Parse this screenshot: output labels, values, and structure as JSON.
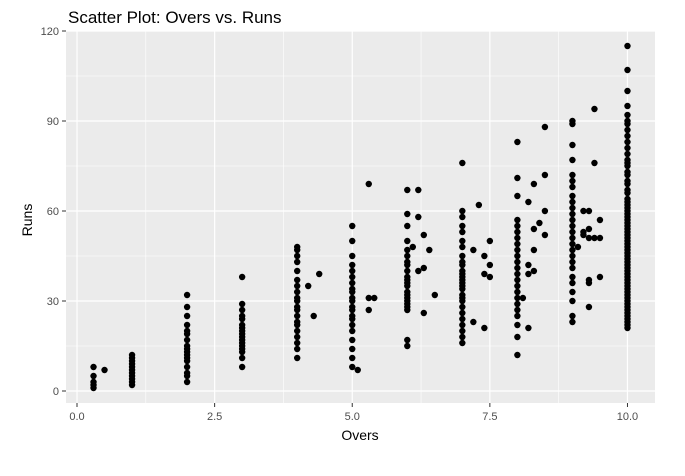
{
  "chart_data": {
    "type": "scatter",
    "title": "Scatter Plot: Overs vs. Runs",
    "xlabel": "Overs",
    "ylabel": "Runs",
    "xlim": [
      -0.2,
      10.5
    ],
    "ylim": [
      -4,
      120
    ],
    "x_ticks": [
      {
        "value": 0,
        "label": "0.0"
      },
      {
        "value": 2.5,
        "label": "2.5"
      },
      {
        "value": 5,
        "label": "5.0"
      },
      {
        "value": 7.5,
        "label": "7.5"
      },
      {
        "value": 10,
        "label": "10.0"
      }
    ],
    "y_ticks": [
      {
        "value": 0,
        "label": "0"
      },
      {
        "value": 30,
        "label": "30"
      },
      {
        "value": 60,
        "label": "60"
      },
      {
        "value": 90,
        "label": "90"
      },
      {
        "value": 120,
        "label": "120"
      }
    ],
    "grid": true,
    "panel_background": "#EBEBEB",
    "grid_color": "#FFFFFF",
    "point_color": "#000000",
    "points": [
      [
        0.3,
        8
      ],
      [
        0.3,
        5
      ],
      [
        0.3,
        3
      ],
      [
        0.3,
        2
      ],
      [
        0.3,
        1
      ],
      [
        0.5,
        7
      ],
      [
        1,
        12
      ],
      [
        1,
        11
      ],
      [
        1,
        10
      ],
      [
        1,
        9
      ],
      [
        1,
        8
      ],
      [
        1,
        7
      ],
      [
        1,
        6
      ],
      [
        1,
        5
      ],
      [
        1,
        4
      ],
      [
        1,
        3
      ],
      [
        1,
        2
      ],
      [
        2,
        32
      ],
      [
        2,
        28
      ],
      [
        2,
        25
      ],
      [
        2,
        22
      ],
      [
        2,
        20
      ],
      [
        2,
        19
      ],
      [
        2,
        17
      ],
      [
        2,
        15
      ],
      [
        2,
        14
      ],
      [
        2,
        13
      ],
      [
        2,
        12
      ],
      [
        2,
        11
      ],
      [
        2,
        10
      ],
      [
        2,
        8
      ],
      [
        2,
        6
      ],
      [
        2,
        5
      ],
      [
        2,
        3
      ],
      [
        3,
        38
      ],
      [
        3,
        29
      ],
      [
        3,
        27
      ],
      [
        3,
        25
      ],
      [
        3,
        24
      ],
      [
        3,
        22
      ],
      [
        3,
        21
      ],
      [
        3,
        20
      ],
      [
        3,
        19
      ],
      [
        3,
        18
      ],
      [
        3,
        17
      ],
      [
        3,
        16
      ],
      [
        3,
        15
      ],
      [
        3,
        14
      ],
      [
        3,
        13
      ],
      [
        3,
        11
      ],
      [
        3,
        8
      ],
      [
        4,
        48
      ],
      [
        4,
        47
      ],
      [
        4,
        45
      ],
      [
        4,
        43
      ],
      [
        4,
        40
      ],
      [
        4,
        37
      ],
      [
        4,
        35
      ],
      [
        4,
        33
      ],
      [
        4,
        31
      ],
      [
        4,
        30
      ],
      [
        4,
        28
      ],
      [
        4,
        27
      ],
      [
        4,
        25
      ],
      [
        4,
        23
      ],
      [
        4,
        22
      ],
      [
        4,
        20
      ],
      [
        4,
        18
      ],
      [
        4,
        16
      ],
      [
        4,
        14
      ],
      [
        4,
        11
      ],
      [
        4.2,
        35
      ],
      [
        4.3,
        25
      ],
      [
        4.4,
        39
      ],
      [
        5,
        55
      ],
      [
        5,
        50
      ],
      [
        5,
        45
      ],
      [
        5,
        42
      ],
      [
        5,
        40
      ],
      [
        5,
        38
      ],
      [
        5,
        36
      ],
      [
        5,
        34
      ],
      [
        5,
        33
      ],
      [
        5,
        31
      ],
      [
        5,
        30
      ],
      [
        5,
        28
      ],
      [
        5,
        27
      ],
      [
        5,
        25
      ],
      [
        5,
        24
      ],
      [
        5,
        22
      ],
      [
        5,
        20
      ],
      [
        5,
        17
      ],
      [
        5,
        14
      ],
      [
        5,
        11
      ],
      [
        5,
        8
      ],
      [
        5.1,
        7
      ],
      [
        5.3,
        69
      ],
      [
        5.3,
        31
      ],
      [
        5.3,
        27
      ],
      [
        5.4,
        31
      ],
      [
        6,
        67
      ],
      [
        6,
        59
      ],
      [
        6,
        55
      ],
      [
        6,
        50
      ],
      [
        6,
        47
      ],
      [
        6,
        45
      ],
      [
        6,
        43
      ],
      [
        6,
        42
      ],
      [
        6,
        40
      ],
      [
        6,
        38
      ],
      [
        6,
        37
      ],
      [
        6,
        36
      ],
      [
        6,
        35
      ],
      [
        6,
        33
      ],
      [
        6,
        32
      ],
      [
        6,
        31
      ],
      [
        6,
        30
      ],
      [
        6,
        29
      ],
      [
        6,
        28
      ],
      [
        6,
        27
      ],
      [
        6,
        17
      ],
      [
        6,
        15
      ],
      [
        6.1,
        48
      ],
      [
        6.2,
        67
      ],
      [
        6.2,
        58
      ],
      [
        6.2,
        40
      ],
      [
        6.3,
        52
      ],
      [
        6.3,
        41
      ],
      [
        6.3,
        26
      ],
      [
        6.4,
        47
      ],
      [
        6.5,
        32
      ],
      [
        7,
        76
      ],
      [
        7,
        60
      ],
      [
        7,
        58
      ],
      [
        7,
        55
      ],
      [
        7,
        53
      ],
      [
        7,
        50
      ],
      [
        7,
        48
      ],
      [
        7,
        45
      ],
      [
        7,
        43
      ],
      [
        7,
        42
      ],
      [
        7,
        40
      ],
      [
        7,
        39
      ],
      [
        7,
        38
      ],
      [
        7,
        37
      ],
      [
        7,
        36
      ],
      [
        7,
        35
      ],
      [
        7,
        34
      ],
      [
        7,
        32
      ],
      [
        7,
        31
      ],
      [
        7,
        30
      ],
      [
        7,
        28
      ],
      [
        7,
        26
      ],
      [
        7,
        24
      ],
      [
        7,
        22
      ],
      [
        7,
        20
      ],
      [
        7,
        18
      ],
      [
        7,
        16
      ],
      [
        7.2,
        47
      ],
      [
        7.2,
        23
      ],
      [
        7.3,
        62
      ],
      [
        7.4,
        45
      ],
      [
        7.4,
        39
      ],
      [
        7.4,
        21
      ],
      [
        7.5,
        50
      ],
      [
        7.5,
        42
      ],
      [
        7.5,
        38
      ],
      [
        8,
        83
      ],
      [
        8,
        71
      ],
      [
        8,
        65
      ],
      [
        8,
        57
      ],
      [
        8,
        55
      ],
      [
        8,
        53
      ],
      [
        8,
        51
      ],
      [
        8,
        49
      ],
      [
        8,
        47
      ],
      [
        8,
        45
      ],
      [
        8,
        43
      ],
      [
        8,
        41
      ],
      [
        8,
        39
      ],
      [
        8,
        37
      ],
      [
        8,
        35
      ],
      [
        8,
        33
      ],
      [
        8,
        31
      ],
      [
        8,
        29
      ],
      [
        8,
        27
      ],
      [
        8,
        25
      ],
      [
        8,
        22
      ],
      [
        8,
        18
      ],
      [
        8,
        12
      ],
      [
        8.1,
        31
      ],
      [
        8.2,
        63
      ],
      [
        8.2,
        42
      ],
      [
        8.2,
        39
      ],
      [
        8.2,
        21
      ],
      [
        8.3,
        69
      ],
      [
        8.3,
        54
      ],
      [
        8.3,
        47
      ],
      [
        8.3,
        40
      ],
      [
        8.4,
        56
      ],
      [
        8.5,
        88
      ],
      [
        8.5,
        72
      ],
      [
        8.5,
        60
      ],
      [
        8.5,
        52
      ],
      [
        9,
        90
      ],
      [
        9,
        89
      ],
      [
        9,
        82
      ],
      [
        9,
        77
      ],
      [
        9,
        72
      ],
      [
        9,
        70
      ],
      [
        9,
        68
      ],
      [
        9,
        65
      ],
      [
        9,
        63
      ],
      [
        9,
        61
      ],
      [
        9,
        59
      ],
      [
        9,
        57
      ],
      [
        9,
        55
      ],
      [
        9,
        53
      ],
      [
        9,
        51
      ],
      [
        9,
        49
      ],
      [
        9,
        47
      ],
      [
        9,
        45
      ],
      [
        9,
        43
      ],
      [
        9,
        41
      ],
      [
        9,
        38
      ],
      [
        9,
        36
      ],
      [
        9,
        33
      ],
      [
        9,
        30
      ],
      [
        9,
        25
      ],
      [
        9,
        23
      ],
      [
        9.1,
        48
      ],
      [
        9.2,
        60
      ],
      [
        9.2,
        53
      ],
      [
        9.2,
        52
      ],
      [
        9.3,
        60
      ],
      [
        9.3,
        54
      ],
      [
        9.3,
        51
      ],
      [
        9.3,
        37
      ],
      [
        9.3,
        36
      ],
      [
        9.3,
        28
      ],
      [
        9.4,
        94
      ],
      [
        9.4,
        76
      ],
      [
        9.4,
        51
      ],
      [
        9.5,
        57
      ],
      [
        9.5,
        51
      ],
      [
        9.5,
        38
      ],
      [
        10,
        115
      ],
      [
        10,
        107
      ],
      [
        10,
        100
      ],
      [
        10,
        95
      ],
      [
        10,
        92
      ],
      [
        10,
        90
      ],
      [
        10,
        89
      ],
      [
        10,
        87
      ],
      [
        10,
        85
      ],
      [
        10,
        83
      ],
      [
        10,
        81
      ],
      [
        10,
        79
      ],
      [
        10,
        77
      ],
      [
        10,
        76
      ],
      [
        10,
        75
      ],
      [
        10,
        73
      ],
      [
        10,
        72
      ],
      [
        10,
        70
      ],
      [
        10,
        69
      ],
      [
        10,
        67
      ],
      [
        10,
        66
      ],
      [
        10,
        64
      ],
      [
        10,
        63
      ],
      [
        10,
        62
      ],
      [
        10,
        61
      ],
      [
        10,
        60
      ],
      [
        10,
        59
      ],
      [
        10,
        58
      ],
      [
        10,
        57
      ],
      [
        10,
        56
      ],
      [
        10,
        55
      ],
      [
        10,
        54
      ],
      [
        10,
        53
      ],
      [
        10,
        52
      ],
      [
        10,
        51
      ],
      [
        10,
        50
      ],
      [
        10,
        49
      ],
      [
        10,
        48
      ],
      [
        10,
        47
      ],
      [
        10,
        46
      ],
      [
        10,
        45
      ],
      [
        10,
        44
      ],
      [
        10,
        43
      ],
      [
        10,
        42
      ],
      [
        10,
        41
      ],
      [
        10,
        40
      ],
      [
        10,
        39
      ],
      [
        10,
        38
      ],
      [
        10,
        37
      ],
      [
        10,
        36
      ],
      [
        10,
        35
      ],
      [
        10,
        34
      ],
      [
        10,
        33
      ],
      [
        10,
        32
      ],
      [
        10,
        31
      ],
      [
        10,
        30
      ],
      [
        10,
        29
      ],
      [
        10,
        28
      ],
      [
        10,
        27
      ],
      [
        10,
        26
      ],
      [
        10,
        25
      ],
      [
        10,
        24
      ],
      [
        10,
        23
      ],
      [
        10,
        22
      ],
      [
        10,
        21
      ]
    ]
  }
}
